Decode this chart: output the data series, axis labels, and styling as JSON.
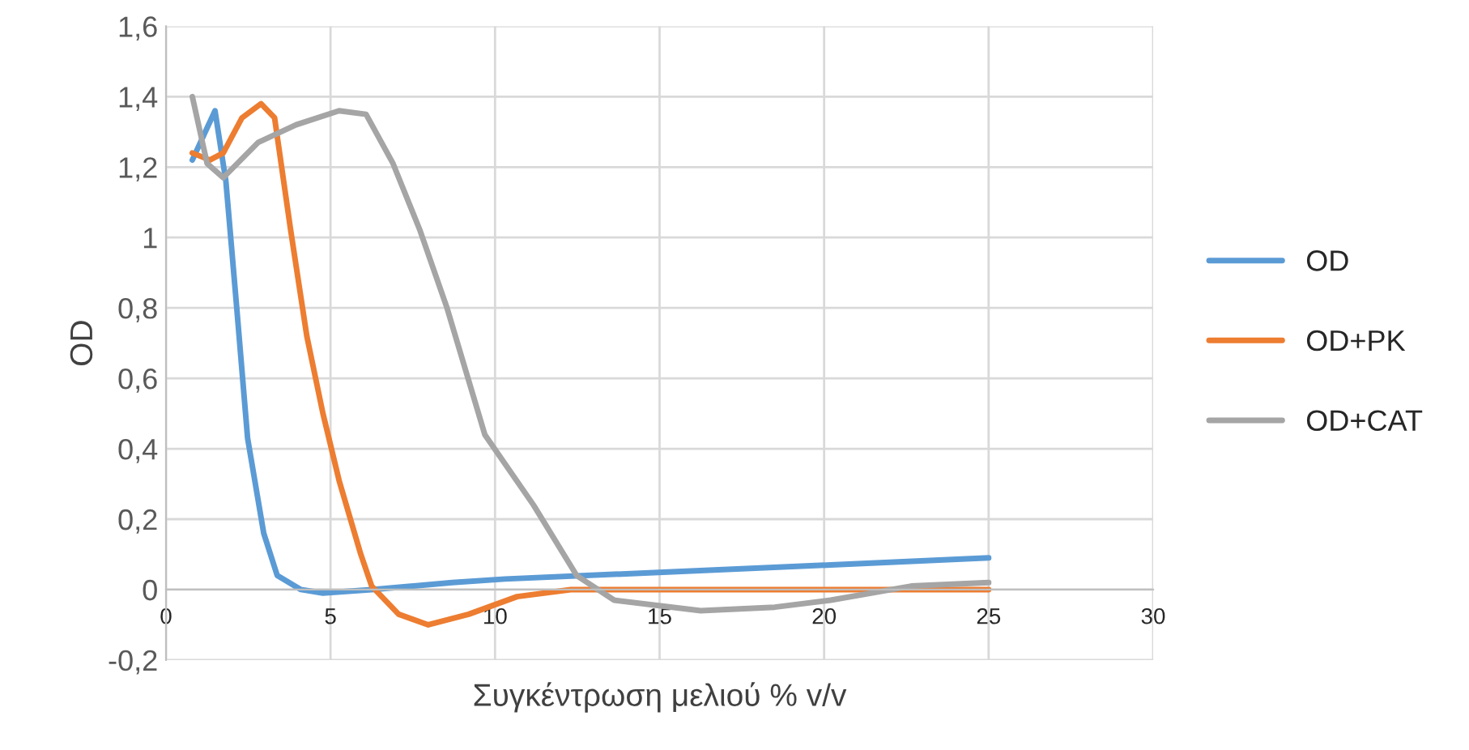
{
  "chart_data": {
    "type": "line",
    "xlabel": "Συγκέντρωση μελιού % v/v",
    "ylabel": "OD",
    "xlim": [
      0,
      30
    ],
    "xticks": [
      0,
      5,
      10,
      15,
      20,
      25,
      30
    ],
    "ylim": [
      -0.2,
      1.6
    ],
    "yticks": [
      {
        "value": -0.2,
        "label": "-0,2"
      },
      0,
      {
        "value": 0.2,
        "label": "0,2"
      },
      {
        "value": 0.4,
        "label": "0,4"
      },
      {
        "value": 0.6,
        "label": "0,6"
      },
      {
        "value": 0.8,
        "label": "0,8"
      },
      1,
      {
        "value": 1.2,
        "label": "1,2"
      },
      {
        "value": 1.4,
        "label": "1,4"
      },
      {
        "value": 1.6,
        "label": "1,6"
      }
    ],
    "grid": true,
    "legend": "right",
    "marker": "none",
    "line_style": "solid",
    "series": [
      {
        "name": "OD",
        "color": "#5b9bd5",
        "x": [
          0.8,
          1.49,
          1.82,
          2.15,
          2.48,
          2.97,
          3.38,
          4.1,
          4.77,
          6.25,
          8.7,
          10.3,
          15.25,
          20.2,
          25
        ],
        "values": [
          1.22,
          1.36,
          1.16,
          0.8,
          0.43,
          0.16,
          0.04,
          0.0,
          -0.01,
          0.0,
          0.02,
          0.03,
          0.05,
          0.07,
          0.09
        ]
      },
      {
        "name": "OD+PK",
        "color": "#ed7d31",
        "x": [
          0.8,
          1.33,
          1.74,
          2.31,
          2.89,
          3.3,
          3.79,
          4.28,
          4.77,
          5.26,
          5.92,
          6.25,
          7.07,
          7.97,
          9.2,
          10.67,
          12.3,
          16.9,
          25
        ],
        "values": [
          1.24,
          1.22,
          1.24,
          1.34,
          1.38,
          1.34,
          1.02,
          0.72,
          0.5,
          0.31,
          0.1,
          0.01,
          -0.07,
          -0.1,
          -0.07,
          -0.02,
          0.0,
          0.0,
          0.0
        ]
      },
      {
        "name": "OD+CAT",
        "color": "#a5a5a5",
        "x": [
          0.8,
          1.25,
          1.74,
          2.8,
          3.95,
          5.26,
          6.08,
          6.9,
          7.72,
          8.54,
          9.69,
          11.17,
          12.48,
          13.62,
          16.25,
          18.5,
          20.2,
          22.65,
          25
        ],
        "values": [
          1.4,
          1.21,
          1.17,
          1.27,
          1.32,
          1.36,
          1.35,
          1.21,
          1.02,
          0.8,
          0.44,
          0.24,
          0.04,
          -0.03,
          -0.06,
          -0.05,
          -0.03,
          0.01,
          0.02
        ]
      }
    ]
  }
}
